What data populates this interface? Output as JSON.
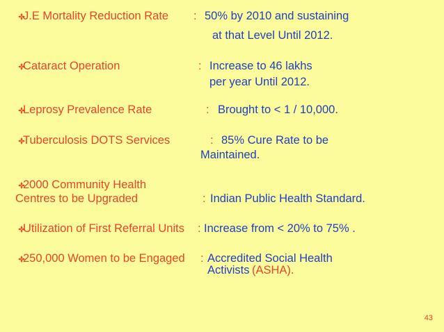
{
  "colors": {
    "background": "#fdfc9c",
    "label": "#e8452a",
    "value": "#1f3fbf"
  },
  "bullet_icon": "four-diamond-bullet-icon",
  "items": [
    {
      "label": "J.E Mortality Reduction Rate",
      "sep": ":",
      "value_lines": [
        "50% by 2010 and sustaining",
        "at that Level Until 2012."
      ]
    },
    {
      "label": "Cataract Operation",
      "sep": ":",
      "value_lines": [
        "Increase to 46 lakhs",
        "per year Until 2012."
      ]
    },
    {
      "label": "Leprosy Prevalence Rate",
      "sep": ":",
      "value_lines": [
        "Brought to < 1 / 10,000."
      ]
    },
    {
      "label": "Tuberculosis DOTS Services",
      "sep": ":",
      "value_lines": [
        "85% Cure Rate to be",
        "Maintained."
      ]
    },
    {
      "label_lines": [
        "2000 Community Health",
        "Centres to be Upgraded"
      ],
      "sep": ":",
      "value_lines": [
        "Indian Public Health Standard."
      ]
    },
    {
      "label": "Utilization of First Referral Units",
      "sep": ":",
      "value_lines": [
        "Increase from < 20% to 75% ."
      ]
    },
    {
      "label": "250,000 Women to be Engaged",
      "sep": ":",
      "value_lines": [
        "Accredited Social Health",
        "Activists"
      ],
      "value_suffix": "(ASHA)."
    }
  ],
  "page_number": "43"
}
